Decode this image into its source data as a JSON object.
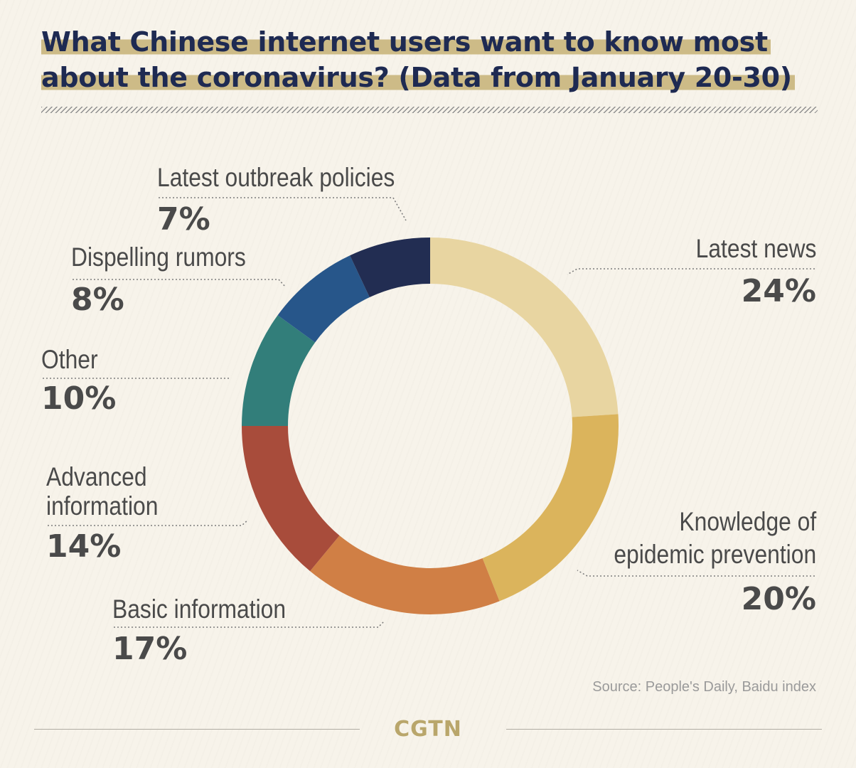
{
  "title": "What Chinese internet users want to know most about the coronavirus? (Data from January 20-30)",
  "source": "Source: People's Daily, Baidu index",
  "brand": "CGTN",
  "chart_data": {
    "type": "pie",
    "title": "What Chinese internet users want to know most about the coronavirus? (Data from January 20-30)",
    "donut": true,
    "start": "12 o'clock, clockwise",
    "slices": [
      {
        "label": "Latest news",
        "value": 24,
        "value_label": "24%",
        "color": "#e8d5a1"
      },
      {
        "label": "Knowledge of epidemic prevention",
        "value": 20,
        "value_label": "20%",
        "color": "#dbb45c"
      },
      {
        "label": "Basic information",
        "value": 17,
        "value_label": "17%",
        "color": "#d07f45"
      },
      {
        "label": "Advanced information",
        "value": 14,
        "value_label": "14%",
        "color": "#a84c3b"
      },
      {
        "label": "Other",
        "value": 10,
        "value_label": "10%",
        "color": "#327e7a"
      },
      {
        "label": "Dispelling rumors",
        "value": 8,
        "value_label": "8%",
        "color": "#27568a"
      },
      {
        "label": "Latest outbreak policies",
        "value": 7,
        "value_label": "7%",
        "color": "#222d52"
      }
    ]
  },
  "labels": {
    "latest_news": [
      "Latest news"
    ],
    "knowledge": [
      "Knowledge of",
      "epidemic prevention"
    ],
    "basic": [
      "Basic information"
    ],
    "advanced": [
      "Advanced",
      "information"
    ],
    "other": [
      "Other"
    ],
    "rumors": [
      "Dispelling rumors"
    ],
    "policies": [
      "Latest outbreak policies"
    ]
  }
}
